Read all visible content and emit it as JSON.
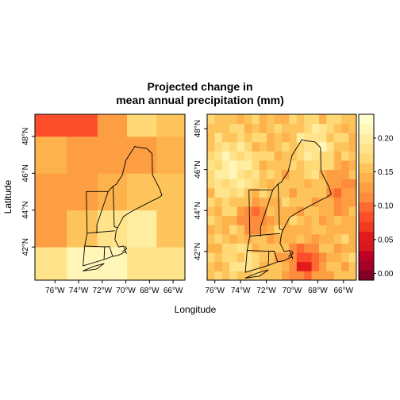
{
  "chart_data": {
    "type": "heatmap",
    "title_lines": [
      "Projected change in",
      "mean annual precipitation (mm)"
    ],
    "xlabel": "Longitude",
    "ylabel": "Latitude",
    "colorbar": {
      "ticks": [
        0.0,
        0.05,
        0.1,
        0.15,
        0.2
      ],
      "tick_labels": [
        "0.00",
        "0.05",
        "0.10",
        "0.15",
        "0.20"
      ],
      "range": [
        -0.01,
        0.235
      ],
      "colors": [
        "#800026",
        "#a50026",
        "#bd0026",
        "#d7191c",
        "#e31a1c",
        "#f03b20",
        "#fc4e2a",
        "#fd6a31",
        "#fd8d3c",
        "#fd9e43",
        "#feb24c",
        "#fec45c",
        "#fed976",
        "#ffe48c",
        "#ffeda0",
        "#fff6b8",
        "#ffffcc"
      ]
    },
    "panels": [
      {
        "name": "coarse",
        "xlim": [
          -77.7,
          -65.0
        ],
        "ylim": [
          40.2,
          49.2
        ],
        "xticks": [
          -76,
          -74,
          -72,
          -70,
          -68,
          -66
        ],
        "xtick_labels": [
          "76°W",
          "74°W",
          "72°W",
          "70°W",
          "68°W",
          "66°W"
        ],
        "yticks": [
          42,
          44,
          46,
          48
        ],
        "ytick_labels": [
          "42°N",
          "44°N",
          "46°N",
          "48°N"
        ],
        "grid_lon_edges": [
          -77.7,
          -75.0,
          -72.4,
          -69.9,
          -67.4,
          -65.0
        ],
        "grid_lat_edges": [
          40.2,
          42.0,
          44.0,
          46.0,
          48.0,
          49.2
        ],
        "values": [
          [
            0.19,
            0.21,
            0.21,
            0.19,
            0.18
          ],
          [
            0.12,
            0.15,
            0.19,
            0.2,
            0.16
          ],
          [
            0.13,
            0.12,
            0.14,
            0.15,
            0.16
          ],
          [
            0.14,
            0.13,
            0.12,
            0.12,
            0.14
          ],
          [
            0.09,
            0.09,
            0.13,
            0.17,
            0.16
          ]
        ]
      },
      {
        "name": "fine",
        "xlim": [
          -76.6,
          -65.0
        ],
        "ylim": [
          40.6,
          48.7
        ],
        "xticks": [
          -76,
          -74,
          -72,
          -70,
          -68,
          -66
        ],
        "xtick_labels": [
          "76°W",
          "74°W",
          "72°W",
          "70°W",
          "68°W",
          "66°W"
        ],
        "yticks": [
          42,
          44,
          46,
          48
        ],
        "ytick_labels": [
          "42°N",
          "44°N",
          "46°N",
          "48°N"
        ],
        "grid_cols": 20,
        "grid_rows": 18
      }
    ]
  }
}
